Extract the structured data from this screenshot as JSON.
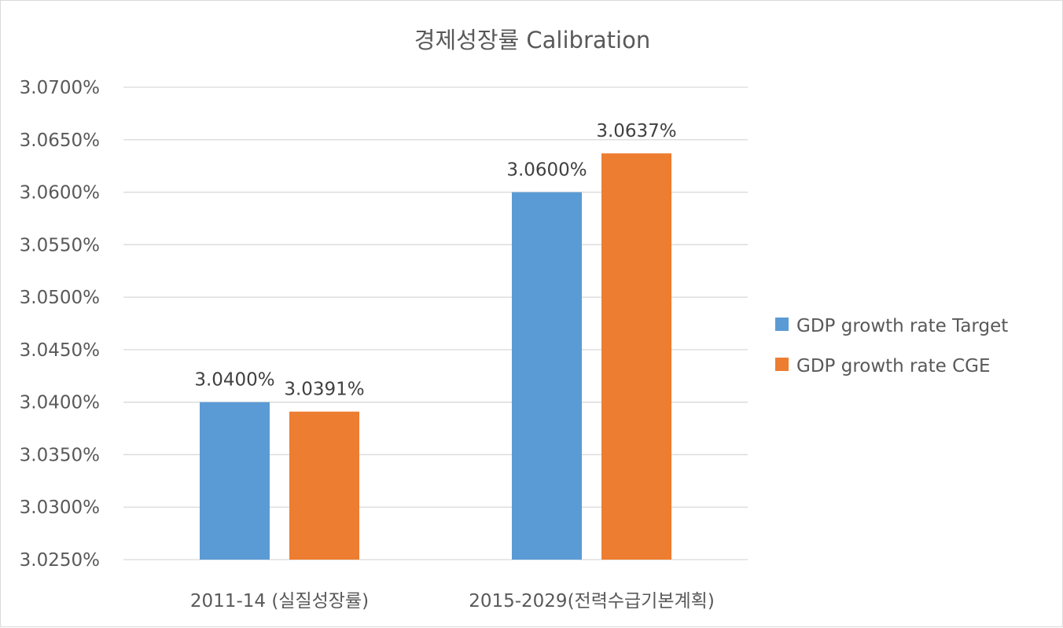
{
  "chart_data": {
    "type": "bar",
    "title": "경제성장률 Calibration",
    "xlabel": "",
    "ylabel": "",
    "categories": [
      "2011-14 (실질성장률)",
      "2015-2029(전력수급기본계획)"
    ],
    "series": [
      {
        "name": "GDP growth rate Target",
        "color": "#5b9bd5",
        "values": [
          3.04,
          3.06
        ],
        "labels": [
          "3.0400%",
          "3.0600%"
        ]
      },
      {
        "name": "GDP growth rate CGE",
        "color": "#ed7d31",
        "values": [
          3.0391,
          3.0637
        ],
        "labels": [
          "3.0391%",
          "3.0637%"
        ]
      }
    ],
    "ylim": [
      3.025,
      3.07
    ],
    "yticks": [
      3.025,
      3.03,
      3.035,
      3.04,
      3.045,
      3.05,
      3.055,
      3.06,
      3.065,
      3.07
    ],
    "ytick_labels": [
      "3.0250%",
      "3.0300%",
      "3.0350%",
      "3.0400%",
      "3.0450%",
      "3.0500%",
      "3.0550%",
      "3.0600%",
      "3.0650%",
      "3.0700%"
    ],
    "grid": true,
    "legend": "right",
    "gridline_color": "#d9d9d9"
  }
}
